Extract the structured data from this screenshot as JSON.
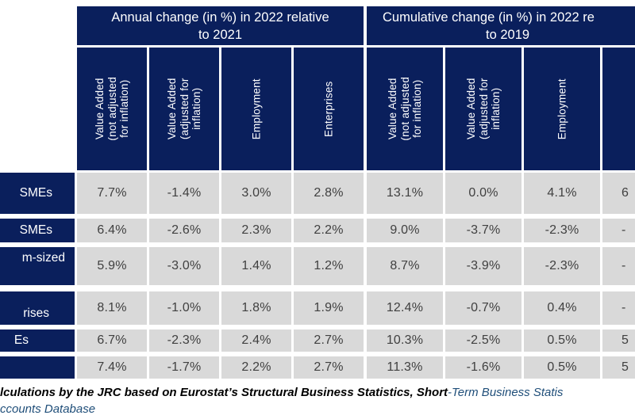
{
  "colors": {
    "header_navy": "#0a1f5c",
    "cell_gray": "#d9d9d9",
    "value_text": "#404040",
    "footer_blue": "#1f4e79"
  },
  "table": {
    "group1_title": "Annual change (in %) in 2022 relative\nto 2021",
    "group2_line1": "Cumulative change (in %) in 2022 re",
    "group2_line2": "to 2019",
    "column_headers": [
      "Value Added\n(not adjusted\nfor inflation)",
      "Value Added\n(adjusted for\ninflation)",
      "Employment",
      "Enterprises",
      "Value Added\n(not adjusted\nfor inflation)",
      "Value Added\n(adjusted for\ninflation)",
      "Employment",
      ""
    ],
    "rows": [
      {
        "label": "SMEs",
        "values": [
          "7.7%",
          "-1.4%",
          "3.0%",
          "2.8%",
          "13.1%",
          "0.0%",
          "4.1%",
          "6"
        ]
      },
      {
        "label": "SMEs",
        "values": [
          "6.4%",
          "-2.6%",
          "2.3%",
          "2.2%",
          "9.0%",
          "-3.7%",
          "-2.3%",
          "-"
        ]
      },
      {
        "label": "m-sized",
        "values": [
          "5.9%",
          "-3.0%",
          "1.4%",
          "1.2%",
          "8.7%",
          "-3.9%",
          "-2.3%",
          "-"
        ]
      },
      {
        "label": "rises",
        "values": [
          "8.1%",
          "-1.0%",
          "1.8%",
          "1.9%",
          "12.4%",
          "-0.7%",
          "0.4%",
          "-"
        ]
      },
      {
        "label": "Es",
        "values": [
          "6.7%",
          "-2.3%",
          "2.4%",
          "2.7%",
          "10.3%",
          "-2.5%",
          "0.5%",
          "5"
        ]
      },
      {
        "label": "",
        "values": [
          "7.4%",
          "-1.7%",
          "2.2%",
          "2.7%",
          "11.3%",
          "-1.6%",
          "0.5%",
          "5"
        ]
      }
    ]
  },
  "footer": {
    "line1_bold": "lculations by the JRC based on Eurostat’s Structural Business Statistics, Short",
    "line1_blue": "-Term Business Statis",
    "line2": "ccounts Database"
  }
}
